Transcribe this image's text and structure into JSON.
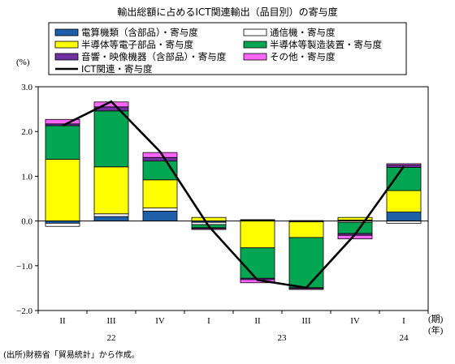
{
  "chart_data": {
    "type": "bar",
    "title": "輸出総額に占めるICT関連輸出（品目別）の寄与度",
    "ylabel": "(%)",
    "ylim": [
      -2.0,
      3.0
    ],
    "yticks": [
      "3.0",
      "2.0",
      "1.0",
      "0.0",
      "−1.0",
      "−2.0"
    ],
    "ytick_values": [
      3.0,
      2.0,
      1.0,
      0.0,
      -1.0,
      -2.0
    ],
    "categories": [
      "II",
      "III",
      "IV",
      "I",
      "II",
      "III",
      "IV",
      "I"
    ],
    "year_labels": [
      {
        "label": "22",
        "from": 0,
        "to": 2
      },
      {
        "label": "23",
        "from": 3,
        "to": 6
      },
      {
        "label": "24",
        "from": 7,
        "to": 7
      }
    ],
    "period_unit": "(期)",
    "year_unit": "(年)",
    "grid": false,
    "legend_position": "top",
    "series": [
      {
        "name": "電算機類（含部品）・寄与度",
        "kind": "bar",
        "color": "#1f5fa8",
        "values": [
          -0.05,
          0.1,
          0.22,
          -0.03,
          0.02,
          0.01,
          0.02,
          0.2
        ]
      },
      {
        "name": "通信機・寄与度",
        "kind": "bar",
        "color": "#ffffff",
        "values": [
          -0.07,
          0.06,
          0.07,
          -0.05,
          0.01,
          -0.02,
          -0.03,
          -0.05
        ]
      },
      {
        "name": "半導体等電子部品・寄与度",
        "kind": "bar",
        "color": "#ffff00",
        "values": [
          1.38,
          1.05,
          0.63,
          0.08,
          -0.6,
          -0.35,
          0.06,
          0.48
        ]
      },
      {
        "name": "半導体等製造装置・寄与度",
        "kind": "bar",
        "color": "#00a651",
        "values": [
          0.75,
          1.25,
          0.42,
          -0.07,
          -0.68,
          -1.12,
          -0.25,
          0.52
        ]
      },
      {
        "name": "音響・映像機器（含部品）・寄与度",
        "kind": "bar",
        "color": "#7030a0",
        "values": [
          0.04,
          0.09,
          0.08,
          -0.02,
          -0.03,
          -0.02,
          -0.04,
          0.05
        ]
      },
      {
        "name": "その他・寄与度",
        "kind": "bar",
        "color": "#ff66ff",
        "values": [
          0.1,
          0.11,
          0.11,
          -0.02,
          -0.07,
          -0.02,
          -0.08,
          0.03
        ]
      },
      {
        "name": "ICT関連・寄与度",
        "kind": "line",
        "color": "#000000",
        "values": [
          2.13,
          2.67,
          1.55,
          -0.12,
          -1.32,
          -1.49,
          -0.3,
          1.22
        ]
      }
    ]
  },
  "source_note": "(出所)財務省「貿易統計」から作成。"
}
